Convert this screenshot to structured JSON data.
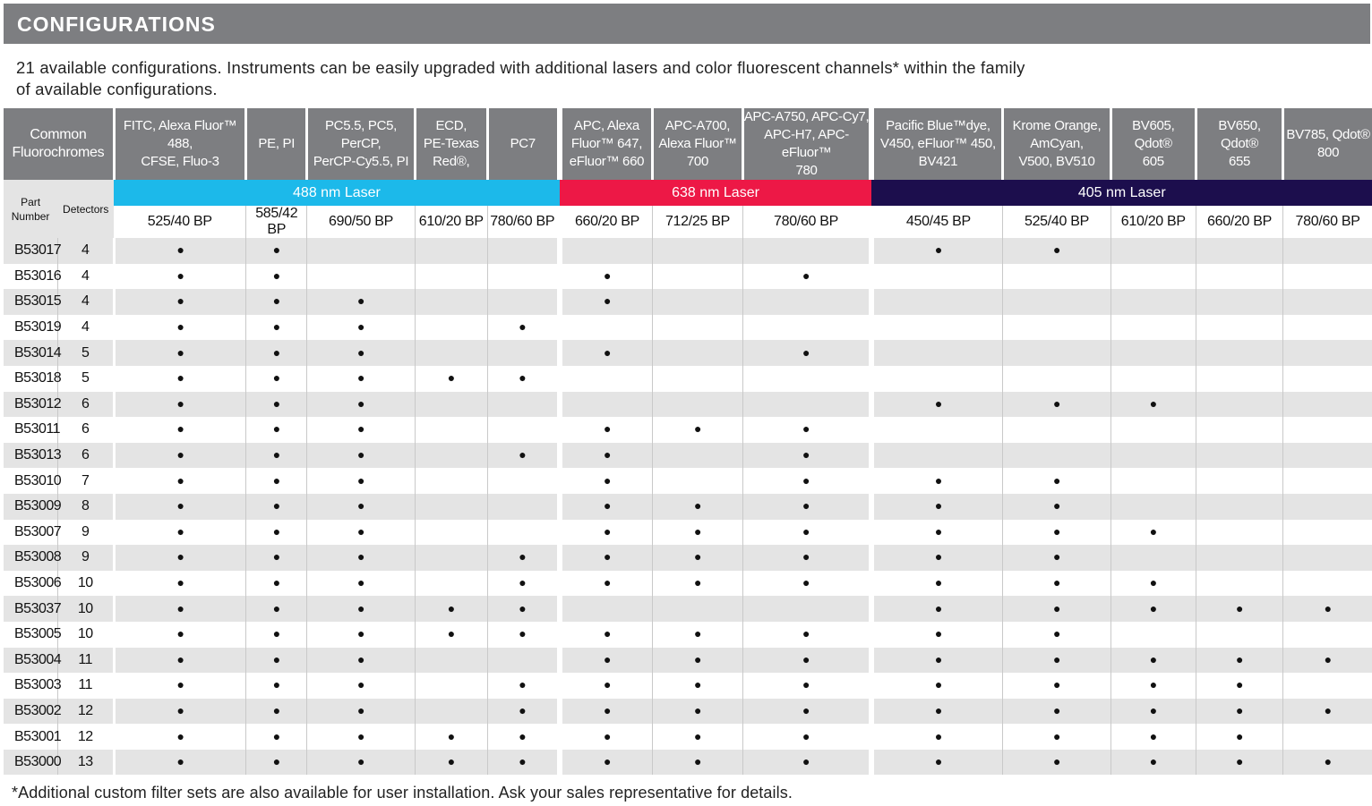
{
  "title": "CONFIGURATIONS",
  "intro_line1": "21 available configurations. Instruments can be easily upgraded with additional lasers and color fluorescent channels* within the family",
  "intro_line2": "of available configurations.",
  "footnote": "*Additional custom filter sets are also available for user installation.  Ask your sales representative for details.",
  "headers": {
    "common": [
      "Common",
      "Fluorochromes"
    ],
    "part": [
      "Part",
      "Number"
    ],
    "detectors": "Detectors",
    "fluors": [
      [
        "FITC, Alexa Fluor™ 488,",
        "CFSE, Fluo-3"
      ],
      [
        "PE, PI"
      ],
      [
        "PC5.5, PC5, PerCP,",
        "PerCP-Cy5.5, PI"
      ],
      [
        "ECD,",
        "PE-Texas",
        "Red®,"
      ],
      [
        "PC7"
      ],
      [
        "APC, Alexa",
        "Fluor™ 647,",
        "eFluor™ 660"
      ],
      [
        "APC-A700,",
        "Alexa Fluor™",
        "700"
      ],
      [
        "APC-A750, APC-Cy7,",
        "APC-H7, APC- eFluor™",
        "780"
      ],
      [
        "Pacific Blue™dye,",
        "V450, eFluor™ 450,",
        "BV421"
      ],
      [
        "Krome Orange,",
        "AmCyan,",
        "V500, BV510"
      ],
      [
        "BV605,",
        "Qdot®",
        "605"
      ],
      [
        "BV650,",
        "Qdot®",
        "655"
      ],
      [
        "BV785, Qdot®",
        "800"
      ]
    ]
  },
  "lasers": [
    {
      "label": "488 nm Laser",
      "color": "#1cb9ea"
    },
    {
      "label": "638 nm Laser",
      "color": "#ed1846"
    },
    {
      "label": "405 nm Laser",
      "color": "#1c0e4d"
    }
  ],
  "filters": [
    "525/40 BP",
    "585/42 BP",
    "690/50 BP",
    "610/20 BP",
    "780/60 BP",
    "660/20 BP",
    "712/25 BP",
    "780/60 BP",
    "450/45 BP",
    "525/40 BP",
    "610/20 BP",
    "660/20 BP",
    "780/60 BP"
  ],
  "dot_symbol": "●",
  "rows": [
    {
      "part": "B53017",
      "detectors": "4",
      "channels": [
        1,
        1,
        0,
        0,
        0,
        0,
        0,
        0,
        1,
        1,
        0,
        0,
        0
      ]
    },
    {
      "part": "B53016",
      "detectors": "4",
      "channels": [
        1,
        1,
        0,
        0,
        0,
        1,
        0,
        1,
        0,
        0,
        0,
        0,
        0
      ]
    },
    {
      "part": "B53015",
      "detectors": "4",
      "channels": [
        1,
        1,
        1,
        0,
        0,
        1,
        0,
        0,
        0,
        0,
        0,
        0,
        0
      ]
    },
    {
      "part": "B53019",
      "detectors": "4",
      "channels": [
        1,
        1,
        1,
        0,
        1,
        0,
        0,
        0,
        0,
        0,
        0,
        0,
        0
      ]
    },
    {
      "part": "B53014",
      "detectors": "5",
      "channels": [
        1,
        1,
        1,
        0,
        0,
        1,
        0,
        1,
        0,
        0,
        0,
        0,
        0
      ]
    },
    {
      "part": "B53018",
      "detectors": "5",
      "channels": [
        1,
        1,
        1,
        1,
        1,
        0,
        0,
        0,
        0,
        0,
        0,
        0,
        0
      ]
    },
    {
      "part": "B53012",
      "detectors": "6",
      "channels": [
        1,
        1,
        1,
        0,
        0,
        0,
        0,
        0,
        1,
        1,
        1,
        0,
        0
      ]
    },
    {
      "part": "B53011",
      "detectors": "6",
      "channels": [
        1,
        1,
        1,
        0,
        0,
        1,
        1,
        1,
        0,
        0,
        0,
        0,
        0
      ]
    },
    {
      "part": "B53013",
      "detectors": "6",
      "channels": [
        1,
        1,
        1,
        0,
        1,
        1,
        0,
        1,
        0,
        0,
        0,
        0,
        0
      ]
    },
    {
      "part": "B53010",
      "detectors": "7",
      "channels": [
        1,
        1,
        1,
        0,
        0,
        1,
        0,
        1,
        1,
        1,
        0,
        0,
        0
      ]
    },
    {
      "part": "B53009",
      "detectors": "8",
      "channels": [
        1,
        1,
        1,
        0,
        0,
        1,
        1,
        1,
        1,
        1,
        0,
        0,
        0
      ]
    },
    {
      "part": "B53007",
      "detectors": "9",
      "channels": [
        1,
        1,
        1,
        0,
        0,
        1,
        1,
        1,
        1,
        1,
        1,
        0,
        0
      ]
    },
    {
      "part": "B53008",
      "detectors": "9",
      "channels": [
        1,
        1,
        1,
        0,
        1,
        1,
        1,
        1,
        1,
        1,
        0,
        0,
        0
      ]
    },
    {
      "part": "B53006",
      "detectors": "10",
      "channels": [
        1,
        1,
        1,
        0,
        1,
        1,
        1,
        1,
        1,
        1,
        1,
        0,
        0
      ]
    },
    {
      "part": "B53037",
      "detectors": "10",
      "channels": [
        1,
        1,
        1,
        1,
        1,
        0,
        0,
        0,
        1,
        1,
        1,
        1,
        1
      ]
    },
    {
      "part": "B53005",
      "detectors": "10",
      "channels": [
        1,
        1,
        1,
        1,
        1,
        1,
        1,
        1,
        1,
        1,
        0,
        0,
        0
      ]
    },
    {
      "part": "B53004",
      "detectors": "11",
      "channels": [
        1,
        1,
        1,
        0,
        0,
        1,
        1,
        1,
        1,
        1,
        1,
        1,
        1
      ]
    },
    {
      "part": "B53003",
      "detectors": "11",
      "channels": [
        1,
        1,
        1,
        0,
        1,
        1,
        1,
        1,
        1,
        1,
        1,
        1,
        0
      ]
    },
    {
      "part": "B53002",
      "detectors": "12",
      "channels": [
        1,
        1,
        1,
        0,
        1,
        1,
        1,
        1,
        1,
        1,
        1,
        1,
        1
      ]
    },
    {
      "part": "B53001",
      "detectors": "12",
      "channels": [
        1,
        1,
        1,
        1,
        1,
        1,
        1,
        1,
        1,
        1,
        1,
        1,
        0
      ]
    },
    {
      "part": "B53000",
      "detectors": "13",
      "channels": [
        1,
        1,
        1,
        1,
        1,
        1,
        1,
        1,
        1,
        1,
        1,
        1,
        1
      ]
    }
  ]
}
